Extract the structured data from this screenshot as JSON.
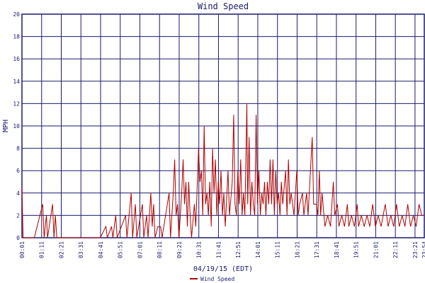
{
  "chart_data": {
    "type": "line",
    "title": "Wind Speed",
    "xlabel": "04/19/15 (EDT)",
    "ylabel": "MPH",
    "ylim": [
      0,
      20
    ],
    "yticks": [
      0,
      2,
      4,
      6,
      8,
      10,
      12,
      14,
      16,
      18,
      20
    ],
    "xticks": [
      "00:01",
      "01:11",
      "02:21",
      "03:31",
      "04:41",
      "05:51",
      "07:01",
      "08:11",
      "09:21",
      "10:31",
      "11:41",
      "12:51",
      "14:01",
      "15:11",
      "16:21",
      "17:31",
      "18:41",
      "19:51",
      "21:01",
      "22:11",
      "23:21",
      "23:54"
    ],
    "grid": true,
    "legend": "bottom-center",
    "series": [
      {
        "name": "Wind Speed",
        "color": "#b00000",
        "points": [
          [
            "00:01",
            4.5
          ],
          [
            "00:05",
            0
          ],
          [
            "00:40",
            0
          ],
          [
            "00:45",
            0
          ],
          [
            "01:15",
            3
          ],
          [
            "01:20",
            0
          ],
          [
            "01:28",
            2
          ],
          [
            "01:32",
            0
          ],
          [
            "01:50",
            3
          ],
          [
            "01:55",
            0
          ],
          [
            "02:00",
            2
          ],
          [
            "02:05",
            0
          ],
          [
            "03:30",
            0
          ],
          [
            "04:40",
            0
          ],
          [
            "05:00",
            1
          ],
          [
            "05:05",
            0
          ],
          [
            "05:20",
            1
          ],
          [
            "05:25",
            0
          ],
          [
            "05:35",
            2
          ],
          [
            "05:40",
            0
          ],
          [
            "06:10",
            2
          ],
          [
            "06:15",
            0
          ],
          [
            "06:30",
            4
          ],
          [
            "06:35",
            0
          ],
          [
            "06:45",
            3
          ],
          [
            "06:50",
            0
          ],
          [
            "07:10",
            3
          ],
          [
            "07:15",
            0
          ],
          [
            "07:25",
            2
          ],
          [
            "07:30",
            0
          ],
          [
            "07:40",
            4
          ],
          [
            "07:45",
            1
          ],
          [
            "07:50",
            3
          ],
          [
            "07:55",
            0
          ],
          [
            "08:05",
            1
          ],
          [
            "08:15",
            1
          ],
          [
            "08:20",
            0
          ],
          [
            "08:45",
            4
          ],
          [
            "08:50",
            0
          ],
          [
            "09:00",
            4
          ],
          [
            "09:05",
            7
          ],
          [
            "09:10",
            2
          ],
          [
            "09:15",
            3
          ],
          [
            "09:20",
            0
          ],
          [
            "09:30",
            4
          ],
          [
            "09:35",
            7
          ],
          [
            "09:40",
            3
          ],
          [
            "09:45",
            5
          ],
          [
            "09:50",
            1
          ],
          [
            "09:55",
            5
          ],
          [
            "10:00",
            2
          ],
          [
            "10:05",
            0
          ],
          [
            "10:15",
            3
          ],
          [
            "10:20",
            1
          ],
          [
            "10:30",
            8
          ],
          [
            "10:35",
            5
          ],
          [
            "10:40",
            6
          ],
          [
            "10:45",
            2
          ],
          [
            "10:50",
            10
          ],
          [
            "10:55",
            3
          ],
          [
            "11:00",
            4
          ],
          [
            "11:05",
            2
          ],
          [
            "11:10",
            5
          ],
          [
            "11:15",
            1
          ],
          [
            "11:20",
            8
          ],
          [
            "11:25",
            4
          ],
          [
            "11:30",
            7
          ],
          [
            "11:35",
            2
          ],
          [
            "11:40",
            5
          ],
          [
            "11:45",
            3
          ],
          [
            "11:50",
            6
          ],
          [
            "11:55",
            2
          ],
          [
            "12:00",
            4
          ],
          [
            "12:05",
            1
          ],
          [
            "12:15",
            6
          ],
          [
            "12:20",
            2
          ],
          [
            "12:30",
            5
          ],
          [
            "12:35",
            11
          ],
          [
            "12:40",
            3
          ],
          [
            "12:45",
            2
          ],
          [
            "12:50",
            6
          ],
          [
            "12:55",
            3
          ],
          [
            "13:00",
            7
          ],
          [
            "13:05",
            2
          ],
          [
            "13:10",
            4
          ],
          [
            "13:15",
            2
          ],
          [
            "13:20",
            9
          ],
          [
            "13:22",
            12
          ],
          [
            "13:25",
            3
          ],
          [
            "13:30",
            9
          ],
          [
            "13:35",
            2
          ],
          [
            "13:40",
            5
          ],
          [
            "13:45",
            3
          ],
          [
            "13:50",
            2
          ],
          [
            "13:55",
            11
          ],
          [
            "14:00",
            3
          ],
          [
            "14:05",
            6
          ],
          [
            "14:10",
            2
          ],
          [
            "14:15",
            4
          ],
          [
            "14:20",
            3
          ],
          [
            "14:25",
            5
          ],
          [
            "14:30",
            2
          ],
          [
            "14:35",
            5
          ],
          [
            "14:40",
            3
          ],
          [
            "14:45",
            7
          ],
          [
            "14:50",
            3
          ],
          [
            "14:55",
            7
          ],
          [
            "15:00",
            2
          ],
          [
            "15:05",
            6
          ],
          [
            "15:10",
            3
          ],
          [
            "15:15",
            4
          ],
          [
            "15:20",
            2
          ],
          [
            "15:25",
            5
          ],
          [
            "15:30",
            3
          ],
          [
            "15:40",
            6
          ],
          [
            "15:45",
            2
          ],
          [
            "15:50",
            7
          ],
          [
            "15:55",
            3
          ],
          [
            "16:00",
            4
          ],
          [
            "16:10",
            2
          ],
          [
            "16:20",
            6
          ],
          [
            "16:25",
            2
          ],
          [
            "16:30",
            3
          ],
          [
            "16:40",
            4
          ],
          [
            "16:45",
            2
          ],
          [
            "16:50",
            3
          ],
          [
            "16:55",
            4
          ],
          [
            "17:00",
            2
          ],
          [
            "17:15",
            9
          ],
          [
            "17:20",
            3
          ],
          [
            "17:30",
            3
          ],
          [
            "17:35",
            2
          ],
          [
            "17:40",
            6
          ],
          [
            "17:45",
            2
          ],
          [
            "17:50",
            4
          ],
          [
            "18:00",
            1
          ],
          [
            "18:10",
            2
          ],
          [
            "18:20",
            1
          ],
          [
            "18:30",
            5
          ],
          [
            "18:35",
            2
          ],
          [
            "18:45",
            3
          ],
          [
            "18:50",
            1
          ],
          [
            "19:00",
            2
          ],
          [
            "19:10",
            1
          ],
          [
            "19:20",
            3
          ],
          [
            "19:25",
            1
          ],
          [
            "19:35",
            2
          ],
          [
            "19:45",
            1
          ],
          [
            "19:55",
            3
          ],
          [
            "20:00",
            1
          ],
          [
            "20:10",
            2
          ],
          [
            "20:20",
            1
          ],
          [
            "20:30",
            2
          ],
          [
            "20:40",
            1
          ],
          [
            "20:50",
            3
          ],
          [
            "21:00",
            1
          ],
          [
            "21:10",
            2
          ],
          [
            "21:20",
            1
          ],
          [
            "21:35",
            3
          ],
          [
            "21:45",
            1
          ],
          [
            "21:55",
            2
          ],
          [
            "22:05",
            1
          ],
          [
            "22:15",
            3
          ],
          [
            "22:25",
            1
          ],
          [
            "22:35",
            2
          ],
          [
            "22:45",
            1
          ],
          [
            "22:55",
            3
          ],
          [
            "23:05",
            1
          ],
          [
            "23:15",
            2
          ],
          [
            "23:25",
            1
          ],
          [
            "23:35",
            3
          ],
          [
            "23:45",
            2
          ],
          [
            "23:54",
            2
          ]
        ]
      }
    ]
  }
}
